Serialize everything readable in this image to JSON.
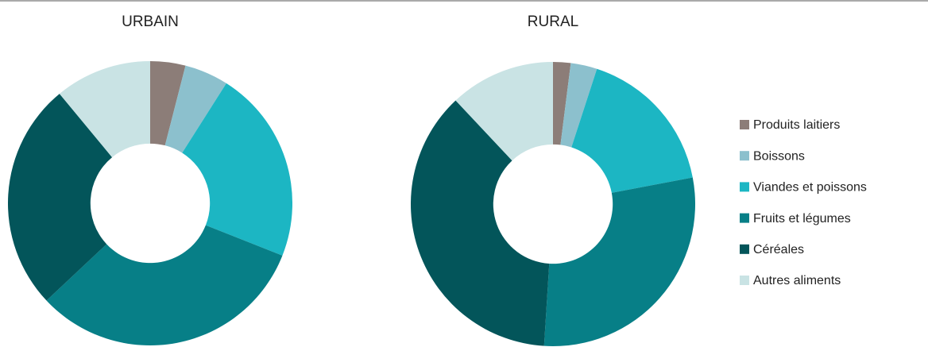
{
  "legend": {
    "categories": [
      "Produits laitiers",
      "Boissons",
      "Viandes et poissons",
      "Fruits et légumes",
      "Céréales",
      "Autres aliments"
    ],
    "colors": [
      "#8c7d78",
      "#8cc0cd",
      "#1cb6c3",
      "#077f87",
      "#03555a",
      "#c9e3e4"
    ]
  },
  "chart_data": [
    {
      "type": "pie",
      "title": "URBAIN",
      "values": [
        4,
        5,
        22,
        32,
        26,
        11
      ]
    },
    {
      "type": "pie",
      "title": "RURAL",
      "values": [
        2,
        3,
        17,
        29,
        37,
        12
      ]
    }
  ]
}
